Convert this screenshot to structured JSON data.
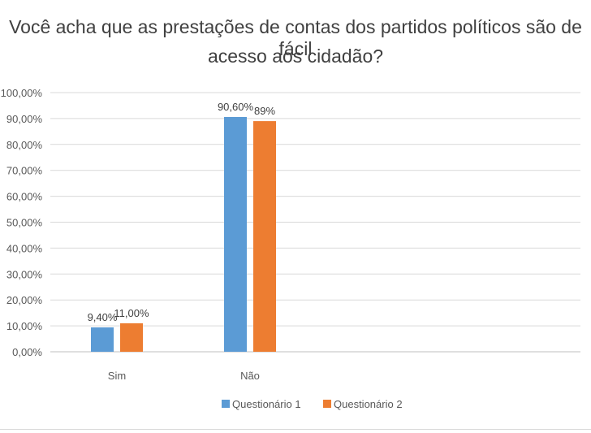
{
  "chart_data": {
    "type": "bar",
    "title_line1": "Você acha que as prestações de contas dos partidos políticos são de fácil",
    "title_line2": "acesso aos cidadão?",
    "categories": [
      "Sim",
      "Não"
    ],
    "series": [
      {
        "name": "Questionário 1",
        "values": [
          9.4,
          90.6
        ],
        "labels": [
          "9,40%",
          "90,60%"
        ],
        "color": "#5B9BD5"
      },
      {
        "name": "Questionário 2",
        "values": [
          11.0,
          89.0
        ],
        "labels": [
          "11,00%",
          "89%"
        ],
        "color": "#ED7D31"
      }
    ],
    "ylim": [
      0,
      100
    ],
    "yticks": [
      "0,00%",
      "10,00%",
      "20,00%",
      "30,00%",
      "40,00%",
      "50,00%",
      "60,00%",
      "70,00%",
      "80,00%",
      "90,00%",
      "100,00%"
    ],
    "grid": true,
    "legend_position": "bottom"
  }
}
